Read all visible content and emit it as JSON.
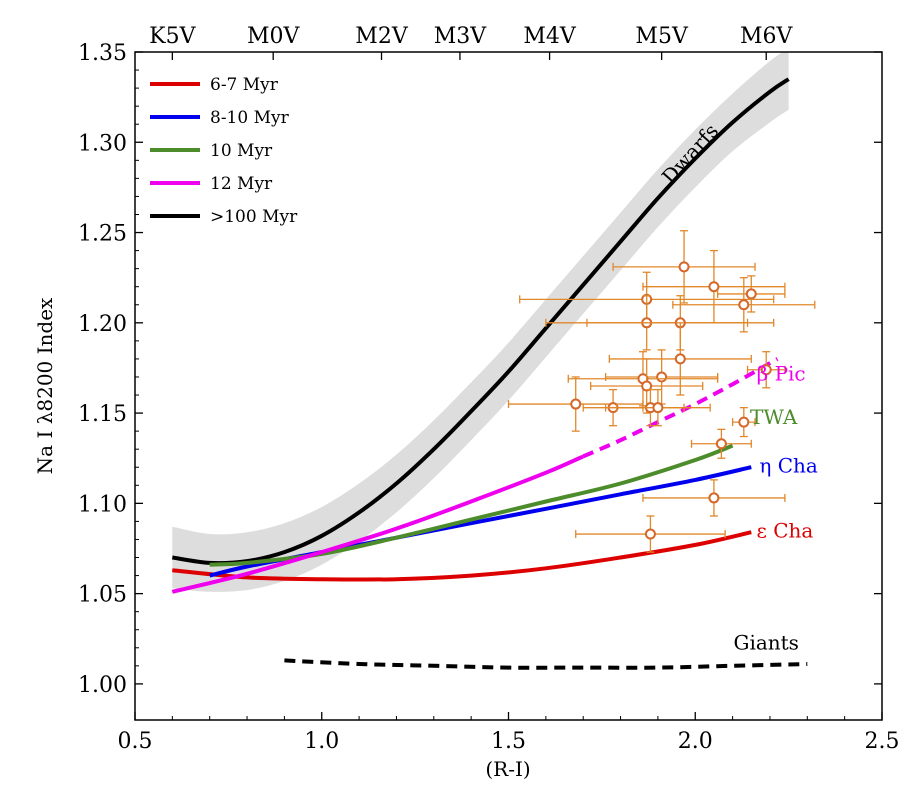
{
  "chart_data": {
    "type": "line",
    "title": "",
    "xlabel": "(R-I)",
    "ylabel": "Na I λ8200 Index",
    "xlim": [
      0.5,
      2.5
    ],
    "ylim": [
      0.98,
      1.35
    ],
    "grid": false,
    "x_ticks": [
      "0.5",
      "1.0",
      "1.5",
      "2.0",
      "2.5"
    ],
    "y_ticks": [
      "1.00",
      "1.05",
      "1.10",
      "1.15",
      "1.20",
      "1.25",
      "1.30",
      "1.35"
    ],
    "top_axis": [
      {
        "label": "K5V",
        "x": 0.6
      },
      {
        "label": "M0V",
        "x": 0.87
      },
      {
        "label": "M2V",
        "x": 1.16
      },
      {
        "label": "M3V",
        "x": 1.37
      },
      {
        "label": "M4V",
        "x": 1.61
      },
      {
        "label": "M5V",
        "x": 1.91
      },
      {
        "label": "M6V",
        "x": 2.19
      }
    ],
    "legend_position": "top-left",
    "legend": [
      {
        "label": "6-7 Myr",
        "color": "#dd0000"
      },
      {
        "label": "8-10 Myr",
        "color": "#0000ee"
      },
      {
        "label": "10 Myr",
        "color": "#4c8c2b"
      },
      {
        "label": "12 Myr",
        "color": "#ee00ee"
      },
      {
        "label": ">100 Myr",
        "color": "#000000"
      }
    ],
    "series": [
      {
        "name": "Dwarfs (>100 Myr)",
        "color": "#000000",
        "style": "solid",
        "x": [
          0.6,
          0.7,
          0.8,
          0.9,
          1.0,
          1.1,
          1.2,
          1.3,
          1.4,
          1.5,
          1.6,
          1.7,
          1.8,
          1.9,
          2.0,
          2.1,
          2.2,
          2.25
        ],
        "y": [
          1.07,
          1.067,
          1.068,
          1.073,
          1.082,
          1.095,
          1.111,
          1.13,
          1.151,
          1.173,
          1.197,
          1.221,
          1.245,
          1.269,
          1.291,
          1.311,
          1.328,
          1.335
        ],
        "band": {
          "color": "#dddddd",
          "upper": [
            1.087,
            1.083,
            1.084,
            1.089,
            1.098,
            1.111,
            1.127,
            1.146,
            1.167,
            1.189,
            1.213,
            1.237,
            1.261,
            1.285,
            1.307,
            1.327,
            1.345,
            1.352
          ],
          "lower": [
            1.053,
            1.051,
            1.052,
            1.057,
            1.066,
            1.079,
            1.095,
            1.114,
            1.135,
            1.157,
            1.181,
            1.205,
            1.229,
            1.253,
            1.275,
            1.295,
            1.311,
            1.318
          ]
        }
      },
      {
        "name": "6-7 Myr (ε Cha)",
        "color": "#dd0000",
        "style": "solid",
        "x": [
          0.6,
          0.8,
          1.0,
          1.2,
          1.4,
          1.6,
          1.8,
          2.0,
          2.15
        ],
        "y": [
          1.063,
          1.059,
          1.058,
          1.058,
          1.06,
          1.064,
          1.07,
          1.077,
          1.084
        ]
      },
      {
        "name": "8-10 Myr (η Cha)",
        "color": "#0000ee",
        "style": "solid",
        "x": [
          0.7,
          0.8,
          1.0,
          1.2,
          1.4,
          1.6,
          1.8,
          2.0,
          2.15
        ],
        "y": [
          1.06,
          1.065,
          1.073,
          1.081,
          1.089,
          1.097,
          1.105,
          1.113,
          1.12
        ]
      },
      {
        "name": "10 Myr (TWA)",
        "color": "#4c8c2b",
        "style": "solid",
        "x": [
          0.7,
          0.8,
          1.0,
          1.2,
          1.4,
          1.6,
          1.8,
          2.0,
          2.1
        ],
        "y": [
          1.066,
          1.067,
          1.072,
          1.081,
          1.091,
          1.101,
          1.111,
          1.124,
          1.132
        ]
      },
      {
        "name": "12 Myr (β Pic)",
        "color": "#ee00ee",
        "style": "solid",
        "x": [
          0.6,
          0.8,
          1.0,
          1.2,
          1.4,
          1.6,
          1.7
        ],
        "y": [
          1.051,
          1.061,
          1.073,
          1.086,
          1.101,
          1.117,
          1.126
        ]
      },
      {
        "name": "12 Myr (β Pic) extrapolated",
        "color": "#ee00ee",
        "style": "dashed",
        "x": [
          1.7,
          1.8,
          1.9,
          2.0,
          2.1,
          2.22
        ],
        "y": [
          1.126,
          1.135,
          1.145,
          1.155,
          1.166,
          1.18
        ]
      },
      {
        "name": "Giants",
        "color": "#000000",
        "style": "dashed",
        "x": [
          0.9,
          1.1,
          1.3,
          1.5,
          1.7,
          1.9,
          2.1,
          2.3
        ],
        "y": [
          1.013,
          1.011,
          1.01,
          1.009,
          1.009,
          1.009,
          1.01,
          1.011
        ]
      }
    ],
    "scatter_points": {
      "color": "#e0882a",
      "points": [
        {
          "x": 1.97,
          "y": 1.231,
          "xerr": 0.19,
          "yerr": 0.02
        },
        {
          "x": 2.05,
          "y": 1.22,
          "xerr": 0.19,
          "yerr": 0.02
        },
        {
          "x": 2.15,
          "y": 1.216,
          "xerr": 0.09,
          "yerr": 0.01
        },
        {
          "x": 1.87,
          "y": 1.213,
          "xerr": 0.34,
          "yerr": 0.015
        },
        {
          "x": 2.13,
          "y": 1.21,
          "xerr": 0.19,
          "yerr": 0.015
        },
        {
          "x": 1.87,
          "y": 1.2,
          "xerr": 0.27,
          "yerr": 0.015
        },
        {
          "x": 1.96,
          "y": 1.2,
          "xerr": 0.25,
          "yerr": 0.015
        },
        {
          "x": 1.96,
          "y": 1.18,
          "xerr": 0.19,
          "yerr": 0.02
        },
        {
          "x": 2.19,
          "y": 1.174,
          "xerr": 0.05,
          "yerr": 0.01
        },
        {
          "x": 1.91,
          "y": 1.17,
          "xerr": 0.15,
          "yerr": 0.015
        },
        {
          "x": 1.86,
          "y": 1.169,
          "xerr": 0.2,
          "yerr": 0.015
        },
        {
          "x": 1.87,
          "y": 1.165,
          "xerr": 0.15,
          "yerr": 0.015
        },
        {
          "x": 1.68,
          "y": 1.155,
          "xerr": 0.18,
          "yerr": 0.015
        },
        {
          "x": 1.78,
          "y": 1.153,
          "xerr": 0.08,
          "yerr": 0.01
        },
        {
          "x": 1.88,
          "y": 1.153,
          "xerr": 0.09,
          "yerr": 0.01
        },
        {
          "x": 1.9,
          "y": 1.153,
          "xerr": 0.14,
          "yerr": 0.01
        },
        {
          "x": 2.13,
          "y": 1.145,
          "xerr": 0.03,
          "yerr": 0.008
        },
        {
          "x": 2.07,
          "y": 1.133,
          "xerr": 0.08,
          "yerr": 0.008
        },
        {
          "x": 2.05,
          "y": 1.103,
          "xerr": 0.19,
          "yerr": 0.01
        },
        {
          "x": 1.88,
          "y": 1.083,
          "xerr": 0.2,
          "yerr": 0.01
        }
      ]
    },
    "annotations": [
      {
        "text": "Dwarfs",
        "x": 2.0,
        "y": 1.291,
        "color": "#000000",
        "rotation": -48
      },
      {
        "text": "β Pic",
        "x": 2.23,
        "y": 1.168,
        "color": "#ee00ee",
        "rotation": 0
      },
      {
        "text": "TWA",
        "x": 2.21,
        "y": 1.144,
        "color": "#4c8c2b",
        "rotation": 0
      },
      {
        "text": "η Cha",
        "x": 2.25,
        "y": 1.117,
        "color": "#0000ee",
        "rotation": 0
      },
      {
        "text": "ε Cha",
        "x": 2.24,
        "y": 1.081,
        "color": "#dd0000",
        "rotation": 0
      },
      {
        "text": "Giants",
        "x": 2.19,
        "y": 1.019,
        "color": "#000000",
        "rotation": 0
      }
    ]
  }
}
